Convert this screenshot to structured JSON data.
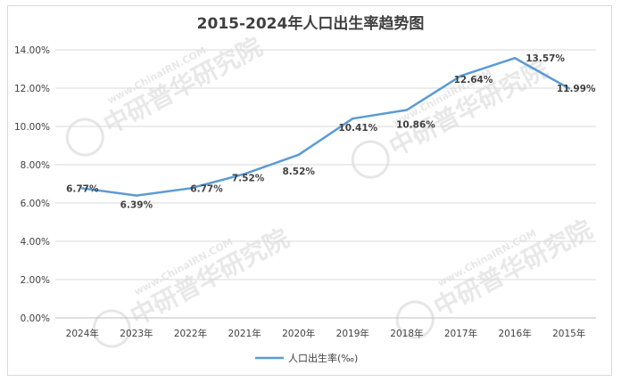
{
  "chart_data": {
    "type": "line",
    "title": "2015-2024年人口出生率趋势图",
    "categories": [
      "2024年",
      "2023年",
      "2022年",
      "2021年",
      "2020年",
      "2019年",
      "2018年",
      "2017年",
      "2016年",
      "2015年"
    ],
    "series": [
      {
        "name": "人口出生率(‰)",
        "values": [
          6.77,
          6.39,
          6.77,
          7.52,
          8.52,
          10.41,
          10.86,
          12.64,
          13.57,
          11.99
        ],
        "labels": [
          "6.77%",
          "6.39%",
          "6.77%",
          "7.52%",
          "8.52%",
          "10.41%",
          "10.86%",
          "12.64%",
          "13.57%",
          "11.99%"
        ],
        "color": "#5b9bd5"
      }
    ],
    "yticks": [
      "0.00%",
      "2.00%",
      "4.00%",
      "6.00%",
      "8.00%",
      "10.00%",
      "12.00%",
      "14.00%"
    ],
    "ylim": [
      0,
      14
    ],
    "grid": true,
    "legend_position": "bottom"
  },
  "watermark": {
    "text": "中研普华研究院",
    "url": "www.ChinaIRN.COM",
    "logo": "CIRN"
  },
  "colors": {
    "grid": "#d9d9d9",
    "axis": "#bfbfbf",
    "text": "#404040",
    "watermark": "#e6e6e6"
  }
}
